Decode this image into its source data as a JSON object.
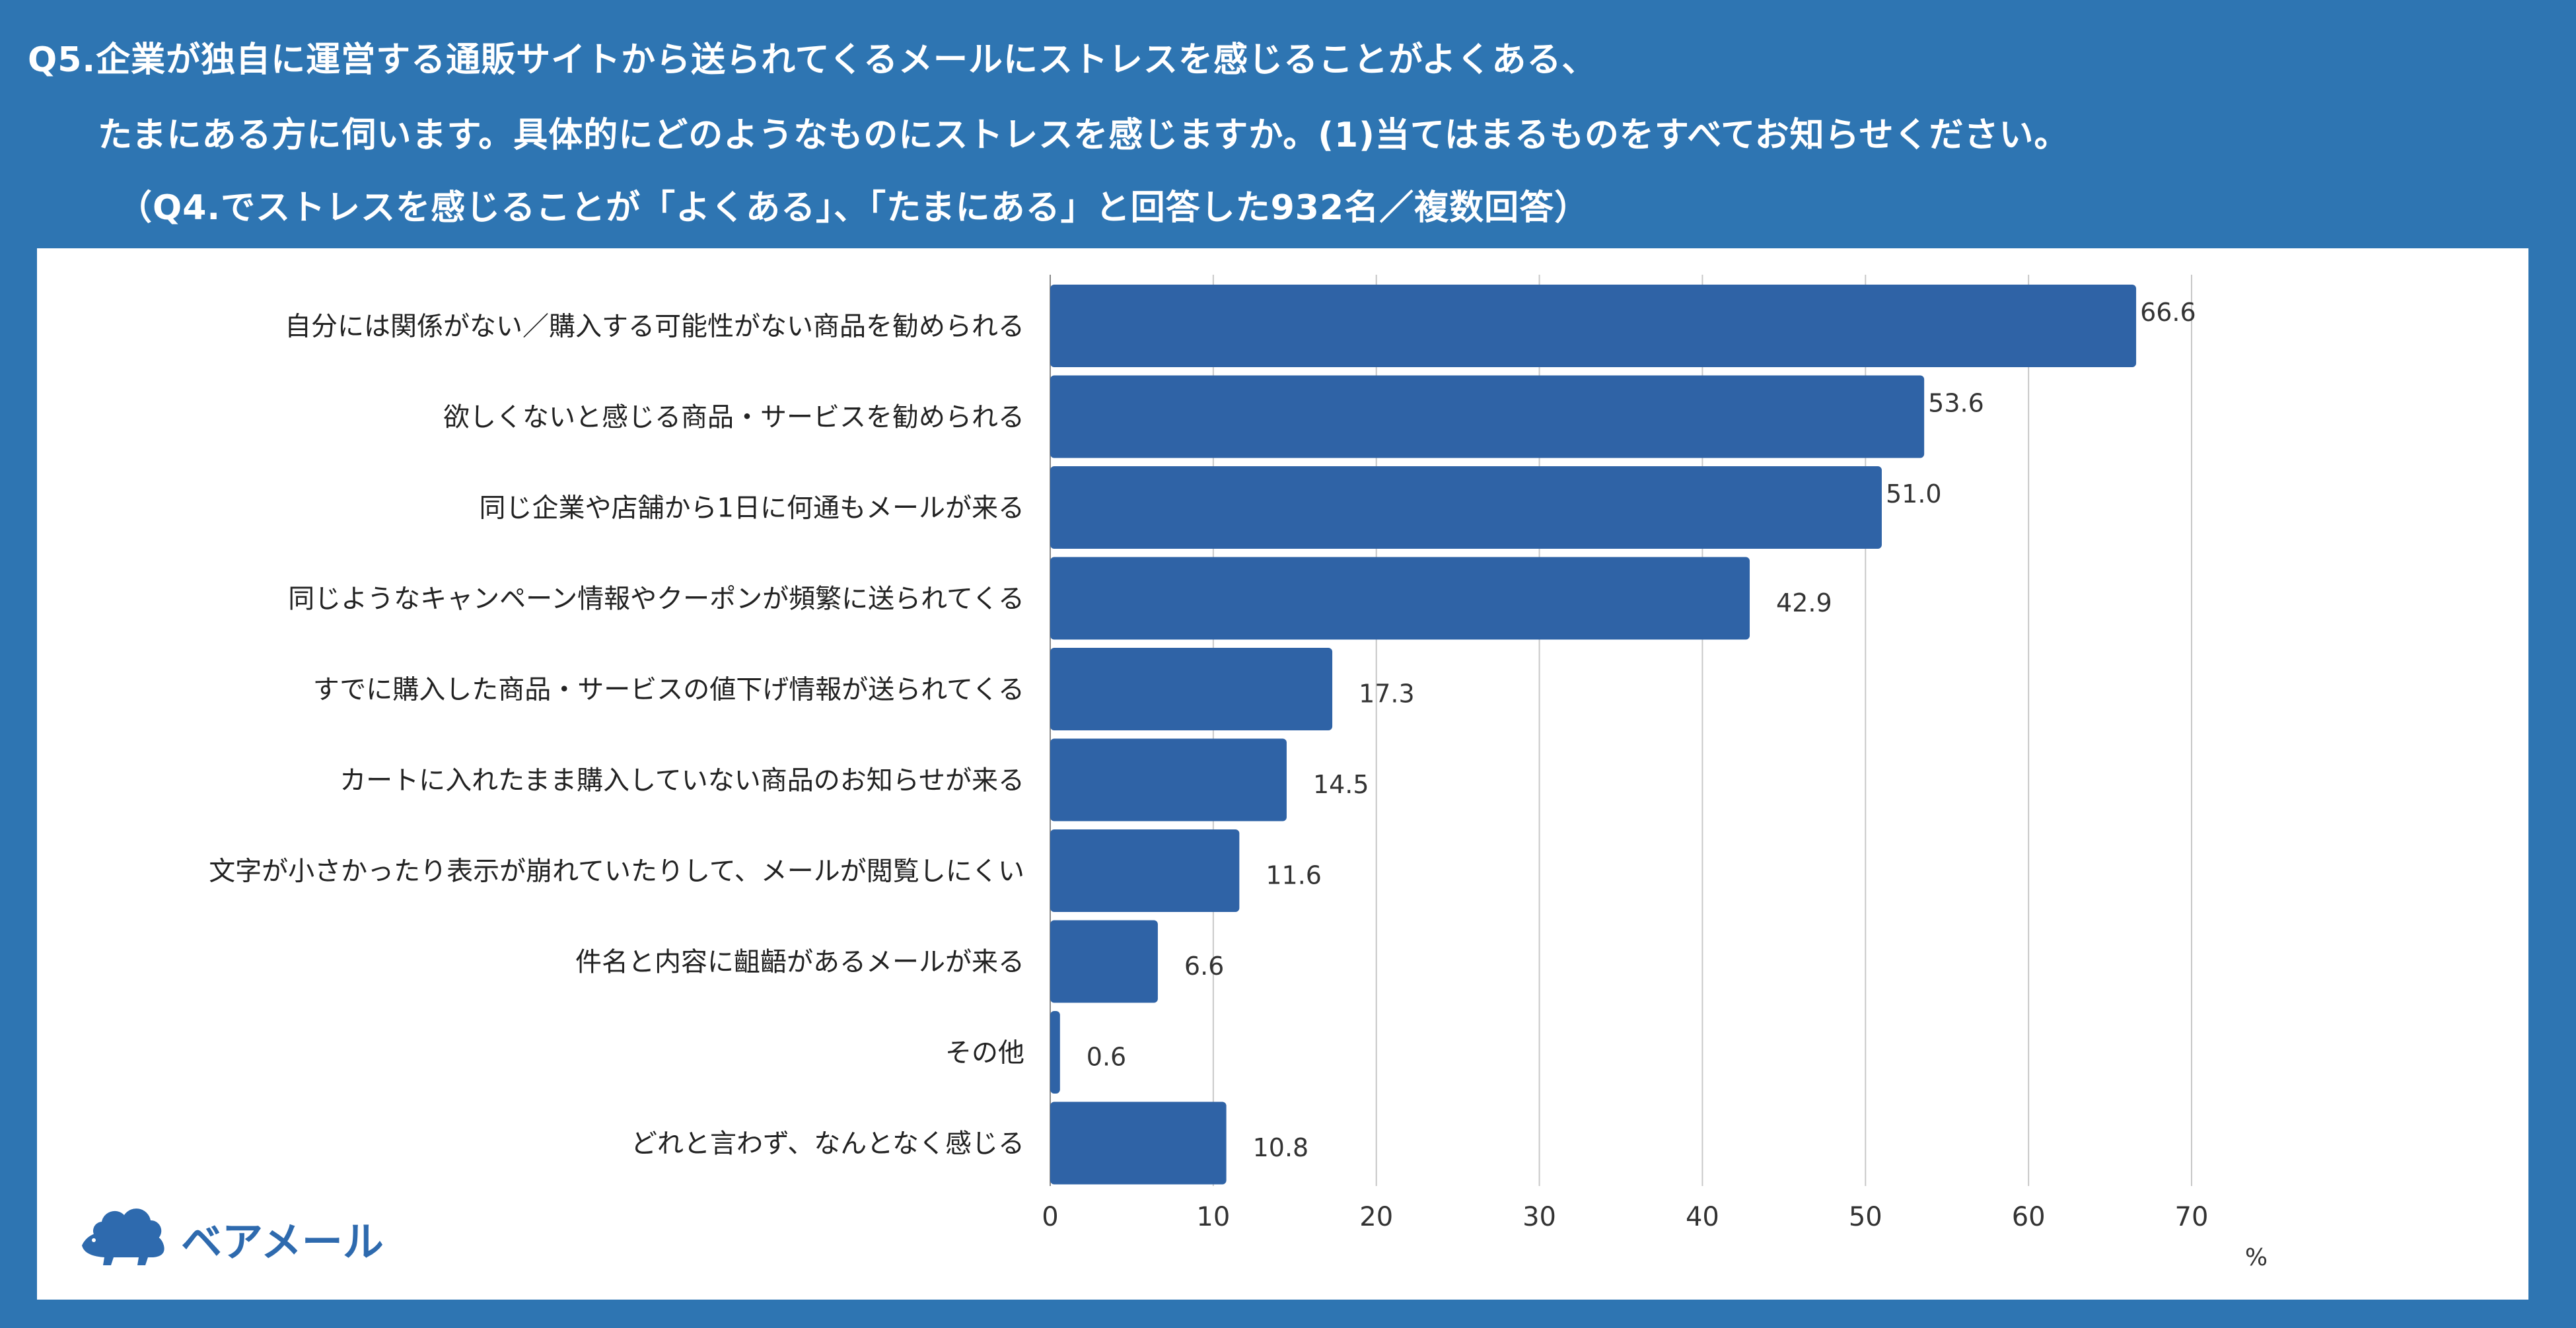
{
  "header": {
    "line1": "Q5.企業が独自に運営する通販サイトから送られてくるメールにストレスを感じることがよくある、",
    "line2": "たまにある方に伺います。具体的にどのようなものにストレスを感じますか。(1)当てはまるものをすべてお知らせください。",
    "line3": "（Q4.でストレスを感じることが「よくある」、「たまにある」と回答した932名／複数回答）"
  },
  "logo": {
    "text": "ベアメール",
    "icon": "bear-cloud-logo"
  },
  "colors": {
    "accent": "#2e75b2",
    "bar": "#2f63a6",
    "grid": "#c8c8c8"
  },
  "chart_data": {
    "type": "bar",
    "orientation": "horizontal",
    "categories": [
      "自分には関係がない／購入する可能性がない商品を勧められる",
      "欲しくないと感じる商品・サービスを勧められる",
      "同じ企業や店舗から1日に何通もメールが来る",
      "同じようなキャンペーン情報やクーポンが頻繁に送られてくる",
      "すでに購入した商品・サービスの値下げ情報が送られてくる",
      "カートに入れたまま購入していない商品のお知らせが来る",
      "文字が小さかったり表示が崩れていたりして、メールが閲覧しにくい",
      "件名と内容に齟齬があるメールが来る",
      "その他",
      "どれと言わず、なんとなく感じる"
    ],
    "values": [
      66.6,
      53.6,
      51.0,
      42.9,
      17.3,
      14.5,
      11.6,
      6.6,
      0.6,
      10.8
    ],
    "value_labels": [
      "66.6",
      "53.6",
      "51.0",
      "42.9",
      "17.3",
      "14.5",
      "11.6",
      "6.6",
      "0.6",
      "10.8"
    ],
    "xlim": [
      0,
      70
    ],
    "xticks": [
      "0",
      "10",
      "20",
      "30",
      "40",
      "50",
      "60",
      "70"
    ],
    "unit": "%",
    "grid": true,
    "legend": false
  }
}
